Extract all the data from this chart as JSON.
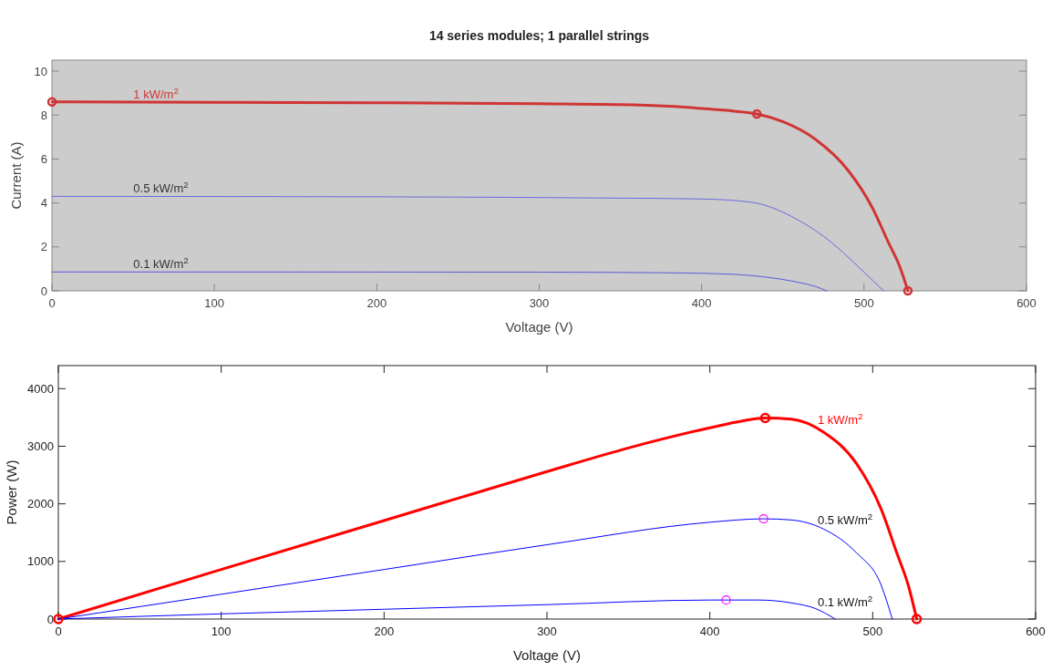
{
  "chart_data": [
    {
      "type": "line",
      "title": "14 series modules; 1 parallel strings",
      "xlabel": "Voltage (V)",
      "ylabel": "Current (A)",
      "xlim": [
        0,
        600
      ],
      "xticks": [
        0,
        100,
        200,
        300,
        400,
        500,
        600
      ],
      "ylim": [
        0,
        10.5
      ],
      "yticks": [
        0,
        2,
        4,
        6,
        8,
        10
      ],
      "grid": false,
      "series": [
        {
          "name": "1 kW/m$^{2}$",
          "color": "#d03535",
          "x": [
            0,
            100,
            200,
            300,
            350,
            380,
            400,
            420,
            434,
            450,
            470,
            490,
            505,
            515,
            522,
            527
          ],
          "values": [
            8.6,
            8.58,
            8.56,
            8.52,
            8.48,
            8.4,
            8.3,
            8.18,
            8.05,
            7.7,
            6.9,
            5.5,
            3.8,
            2.2,
            1.1,
            0
          ]
        },
        {
          "name": "0.5 kW/m$^{2}$",
          "color": "#6a6ae0",
          "x": [
            0,
            200,
            350,
            400,
            430,
            460,
            480,
            495,
            505,
            512
          ],
          "values": [
            4.3,
            4.28,
            4.22,
            4.18,
            4.04,
            3.2,
            2.2,
            1.2,
            0.5,
            0
          ]
        },
        {
          "name": "0.1 kW/m$^{2}$",
          "color": "#5a5ad8",
          "x": [
            0,
            300,
            380,
            420,
            440,
            460,
            470,
            477
          ],
          "values": [
            0.86,
            0.85,
            0.82,
            0.75,
            0.62,
            0.38,
            0.2,
            0
          ]
        },
        {
          "type": "scatter",
          "marker": "circle",
          "color": "#d03535",
          "x": [
            0,
            434,
            527
          ],
          "values": [
            8.6,
            8.05,
            0
          ]
        }
      ]
    },
    {
      "type": "line",
      "xlabel": "Voltage (V)",
      "ylabel": "Power (W)",
      "xlim": [
        0,
        600
      ],
      "xticks": [
        0,
        100,
        200,
        300,
        400,
        500,
        600
      ],
      "ylim": [
        0,
        4400
      ],
      "yticks": [
        0,
        1000,
        2000,
        3000,
        4000
      ],
      "grid": false,
      "series": [
        {
          "name": "1 kW/m$^{2}$",
          "color": "#ff0000",
          "x": [
            0,
            100,
            200,
            300,
            350,
            400,
            420,
            434,
            450,
            470,
            490,
            505,
            515,
            522,
            527
          ],
          "values": [
            0,
            860,
            1710,
            2560,
            2970,
            3320,
            3440,
            3490,
            3470,
            3240,
            2700,
            1920,
            1130,
            570,
            0
          ]
        },
        {
          "name": "0.5 kW/m$^{2}$",
          "color": "#0000ff",
          "x": [
            0,
            100,
            200,
            300,
            400,
            433,
            450,
            470,
            490,
            505,
            512
          ],
          "values": [
            0,
            430,
            860,
            1290,
            1680,
            1740,
            1720,
            1560,
            1150,
            600,
            0
          ]
        },
        {
          "name": "0.1 kW/m$^{2}$",
          "color": "#0000ff",
          "x": [
            0,
            100,
            200,
            300,
            400,
            410,
            430,
            450,
            465,
            477
          ],
          "values": [
            0,
            90,
            170,
            250,
            330,
            330,
            330,
            280,
            180,
            0
          ]
        },
        {
          "type": "scatter",
          "marker": "circle",
          "color": "#ff0000",
          "x": [
            0,
            434,
            527
          ],
          "values": [
            0,
            3490,
            0
          ]
        },
        {
          "type": "scatter",
          "marker": "circle",
          "color": "#ff00ff",
          "x": [
            410,
            433
          ],
          "values": [
            330,
            1740
          ]
        }
      ]
    }
  ]
}
